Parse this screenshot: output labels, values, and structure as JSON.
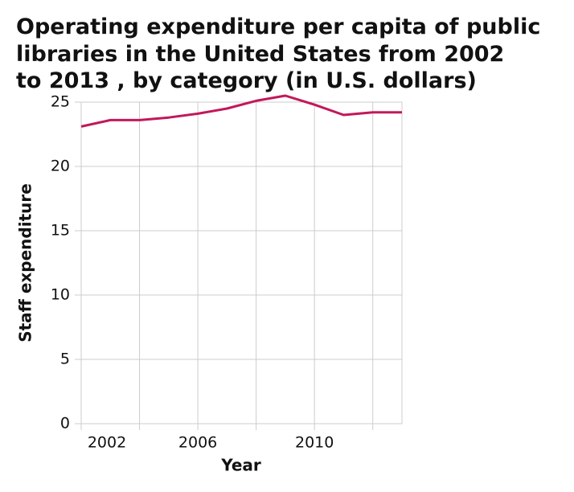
{
  "chart_data": {
    "type": "line",
    "title": [
      "Operating expenditure per capita of public",
      "libraries in the United States from 2002",
      "to 2013 , by category (in U.S. dollars)"
    ],
    "x_label": "Year",
    "y_label": "Staff expenditure",
    "x": [
      2002,
      2003,
      2004,
      2005,
      2006,
      2007,
      2008,
      2009,
      2010,
      2011,
      2012,
      2013
    ],
    "series": [
      {
        "name": "Staff expenditure",
        "color": "#c2185b",
        "values": [
          23.1,
          23.6,
          23.6,
          23.8,
          24.1,
          24.5,
          25.1,
          25.5,
          24.8,
          24.0,
          24.2,
          24.2
        ]
      }
    ],
    "xlim": [
      2002,
      2013
    ],
    "xticks": [
      2002,
      2006,
      2010
    ],
    "minor_xticks": [
      2004,
      2008,
      2012
    ],
    "ylim": [
      0,
      25
    ],
    "yticks": [
      0,
      5,
      10,
      15,
      20,
      25
    ],
    "grid": true
  }
}
